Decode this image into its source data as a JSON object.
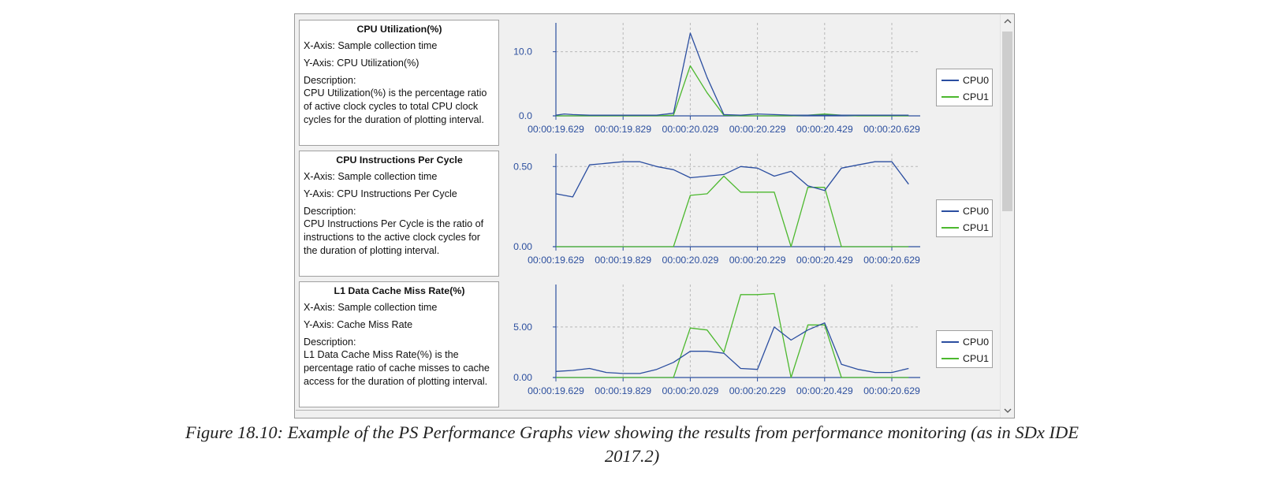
{
  "panels": [
    {
      "title": "CPU Utilization(%)",
      "x_axis": "X-Axis: Sample collection time",
      "y_axis": "Y-Axis: CPU Utilization(%)",
      "description_label": "Description:",
      "description": "CPU Utilization(%) is the percentage ratio of active clock cycles to total CPU clock cycles for the duration of plotting interval.",
      "legend": [
        "CPU0",
        "CPU1"
      ]
    },
    {
      "title": "CPU Instructions Per Cycle",
      "x_axis": "X-Axis: Sample collection time",
      "y_axis": "Y-Axis: CPU Instructions Per Cycle",
      "description_label": "Description:",
      "description": "CPU Instructions Per Cycle is the ratio of instructions to the active clock cycles for the duration of plotting interval.",
      "legend": [
        "CPU0",
        "CPU1"
      ]
    },
    {
      "title": "L1 Data Cache Miss Rate(%)",
      "x_axis": "X-Axis: Sample collection time",
      "y_axis": "Y-Axis: Cache Miss Rate",
      "description_label": "Description:",
      "description": "L1 Data Cache Miss Rate(%) is the percentage ratio of cache misses to cache access for the duration of plotting interval.",
      "legend": [
        "CPU0",
        "CPU1"
      ]
    }
  ],
  "colors": {
    "cpu0": "#2b4ea0",
    "cpu1": "#4cb82e",
    "grid": "#b8b8b8",
    "axis": "#2c4f9e"
  },
  "chart_data": [
    {
      "type": "line",
      "title": "CPU Utilization(%)",
      "xlabel": "Sample collection time",
      "ylabel": "CPU Utilization(%)",
      "x_tick_labels": [
        "00:00:19.629",
        "00:00:19.829",
        "00:00:20.029",
        "00:00:20.229",
        "00:00:20.429",
        "00:00:20.629"
      ],
      "x": [
        19.629,
        19.654,
        19.679,
        19.729,
        19.779,
        19.829,
        19.879,
        19.929,
        19.979,
        20.029,
        20.079,
        20.129,
        20.179,
        20.229,
        20.279,
        20.329,
        20.379,
        20.429,
        20.479,
        20.529,
        20.579,
        20.629,
        20.679
      ],
      "xlim": [
        19.629,
        20.71
      ],
      "ylim": [
        0,
        14.5
      ],
      "y_ticks": [
        0,
        10
      ],
      "y_tick_labels": [
        "0.0",
        "10.0"
      ],
      "series": [
        {
          "name": "CPU0",
          "values": [
            0.1,
            0.3,
            0.2,
            0.1,
            0.1,
            0.1,
            0.1,
            0.1,
            0.4,
            12.9,
            6.0,
            0.2,
            0.1,
            0.3,
            0.2,
            0.1,
            0.1,
            0.1,
            0.1,
            0.1,
            0.1,
            0.1,
            0.1
          ]
        },
        {
          "name": "CPU1",
          "values": [
            0.0,
            0.0,
            0.0,
            0.0,
            0.0,
            0.0,
            0.0,
            0.0,
            0.1,
            7.8,
            3.6,
            0.1,
            0.0,
            0.0,
            0.0,
            0.0,
            0.1,
            0.3,
            0.1,
            0.0,
            0.0,
            0.0,
            0.0
          ]
        }
      ]
    },
    {
      "type": "line",
      "title": "CPU Instructions Per Cycle",
      "xlabel": "Sample collection time",
      "ylabel": "CPU Instructions Per Cycle",
      "x_tick_labels": [
        "00:00:19.629",
        "00:00:19.829",
        "00:00:20.029",
        "00:00:20.229",
        "00:00:20.429",
        "00:00:20.629"
      ],
      "x": [
        19.629,
        19.679,
        19.729,
        19.779,
        19.829,
        19.879,
        19.929,
        19.979,
        20.029,
        20.079,
        20.129,
        20.179,
        20.229,
        20.279,
        20.329,
        20.379,
        20.429,
        20.479,
        20.529,
        20.579,
        20.629,
        20.679
      ],
      "xlim": [
        19.629,
        20.71
      ],
      "ylim": [
        0,
        0.58
      ],
      "y_ticks": [
        0,
        0.5
      ],
      "y_tick_labels": [
        "0.00",
        "0.50"
      ],
      "series": [
        {
          "name": "CPU0",
          "values": [
            0.33,
            0.31,
            0.51,
            0.52,
            0.53,
            0.53,
            0.5,
            0.48,
            0.43,
            0.44,
            0.45,
            0.5,
            0.49,
            0.44,
            0.47,
            0.38,
            0.35,
            0.49,
            0.51,
            0.53,
            0.53,
            0.39
          ]
        },
        {
          "name": "CPU1",
          "values": [
            0.0,
            0.0,
            0.0,
            0.0,
            0.0,
            0.0,
            0.0,
            0.0,
            0.32,
            0.33,
            0.44,
            0.34,
            0.34,
            0.34,
            0.0,
            0.37,
            0.37,
            0.0,
            0.0,
            0.0,
            0.0,
            0.0
          ]
        }
      ]
    },
    {
      "type": "line",
      "title": "L1 Data Cache Miss Rate(%)",
      "xlabel": "Sample collection time",
      "ylabel": "Cache Miss Rate",
      "x_tick_labels": [
        "00:00:19.629",
        "00:00:19.829",
        "00:00:20.029",
        "00:00:20.229",
        "00:00:20.429",
        "00:00:20.629"
      ],
      "x": [
        19.629,
        19.679,
        19.729,
        19.779,
        19.829,
        19.879,
        19.929,
        19.979,
        20.029,
        20.079,
        20.129,
        20.179,
        20.229,
        20.279,
        20.329,
        20.379,
        20.429,
        20.479,
        20.529,
        20.579,
        20.629,
        20.679
      ],
      "xlim": [
        19.629,
        20.71
      ],
      "ylim": [
        0,
        9.2
      ],
      "y_ticks": [
        0,
        5
      ],
      "y_tick_labels": [
        "0.00",
        "5.00"
      ],
      "series": [
        {
          "name": "CPU0",
          "values": [
            0.6,
            0.7,
            0.9,
            0.5,
            0.4,
            0.4,
            0.8,
            1.5,
            2.6,
            2.6,
            2.4,
            0.9,
            0.8,
            5.0,
            3.7,
            4.7,
            5.4,
            1.3,
            0.8,
            0.5,
            0.5,
            0.9
          ]
        },
        {
          "name": "CPU1",
          "values": [
            0.0,
            0.0,
            0.0,
            0.0,
            0.0,
            0.0,
            0.0,
            0.0,
            4.9,
            4.7,
            2.5,
            8.2,
            8.2,
            8.3,
            0.0,
            5.2,
            5.2,
            0.0,
            0.0,
            0.0,
            0.0,
            0.0
          ]
        }
      ]
    }
  ],
  "caption": {
    "line1": "Figure 18.10:  Example of the PS Performance Graphs view showing the results from performance monitoring (as in SDx IDE",
    "line2": "2017.2)"
  }
}
